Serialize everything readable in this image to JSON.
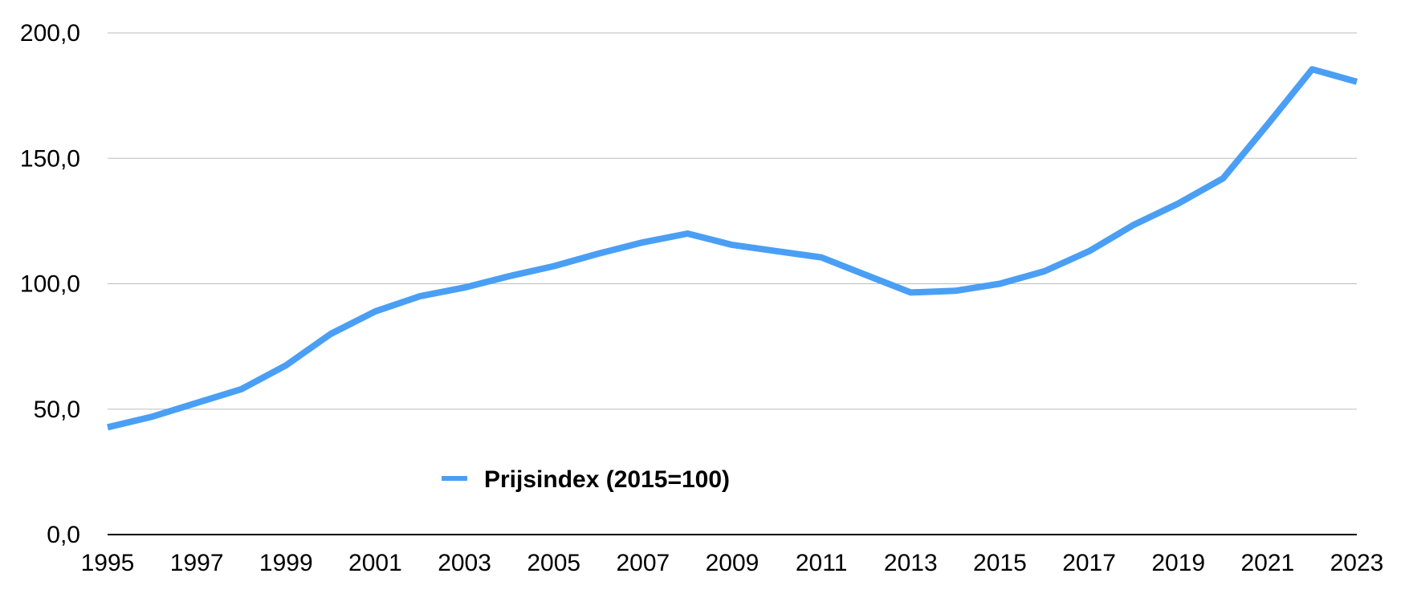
{
  "chart_data": {
    "type": "line",
    "title": "",
    "xlabel": "",
    "ylabel": "",
    "x": [
      1995,
      1996,
      1997,
      1998,
      1999,
      2000,
      2001,
      2002,
      2003,
      2004,
      2005,
      2006,
      2007,
      2008,
      2009,
      2010,
      2011,
      2012,
      2013,
      2014,
      2015,
      2016,
      2017,
      2018,
      2019,
      2020,
      2021,
      2022,
      2023
    ],
    "x_tick_labels": [
      "1995",
      "1997",
      "1999",
      "2001",
      "2003",
      "2005",
      "2007",
      "2009",
      "2011",
      "2013",
      "2015",
      "2017",
      "2019",
      "2021",
      "2023"
    ],
    "xlim": [
      1995,
      2023
    ],
    "ylim": [
      0,
      200
    ],
    "y_ticks": [
      0,
      50,
      100,
      150,
      200
    ],
    "y_tick_labels": [
      "0,0",
      "50,0",
      "100,0",
      "150,0",
      "200,0"
    ],
    "grid": "horizontal",
    "legend": "bottom-left",
    "series": [
      {
        "name": "Prijsindex (2015=100)",
        "color": "#4a9ff5",
        "values": [
          42.8,
          47.0,
          52.5,
          58.0,
          67.5,
          80.0,
          89.0,
          95.0,
          98.5,
          103.0,
          107.0,
          112.0,
          116.5,
          120.0,
          115.5,
          113.0,
          110.5,
          103.5,
          96.5,
          97.2,
          100.0,
          105.0,
          113.0,
          123.5,
          132.0,
          142.0,
          163.5,
          185.5,
          180.5
        ]
      }
    ]
  }
}
